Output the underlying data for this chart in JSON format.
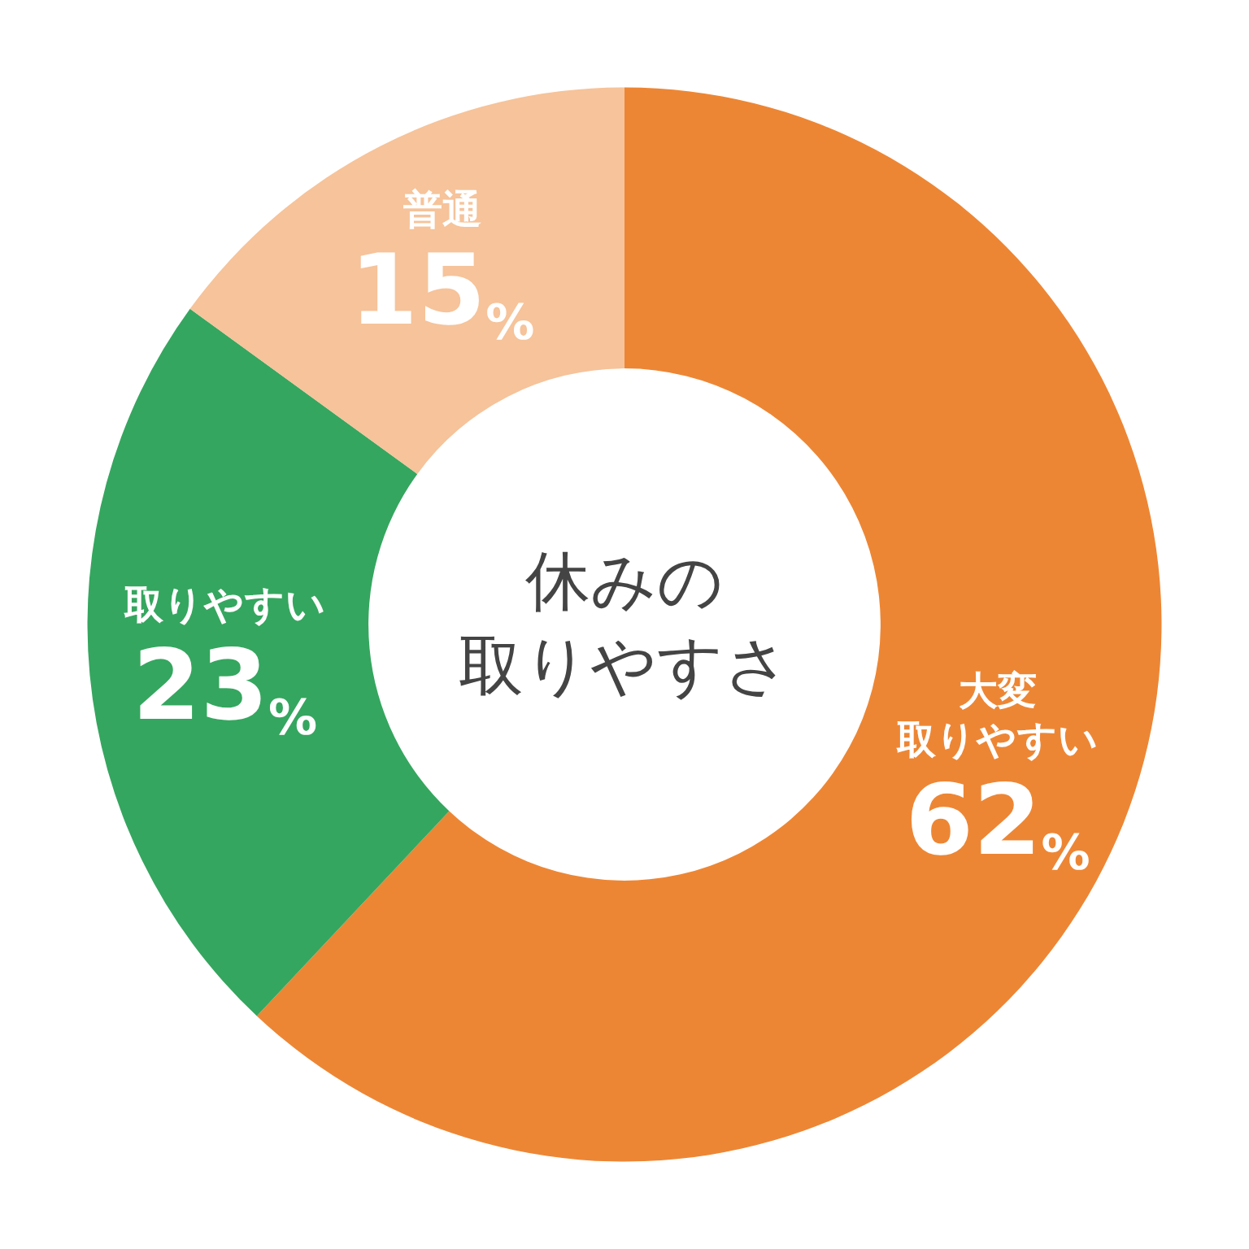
{
  "chart_data": {
    "type": "donut",
    "title": "休みの取りやすさ",
    "categories": [
      "大変取りやすい",
      "取りやすい",
      "普通"
    ],
    "values": [
      62,
      23,
      15
    ],
    "colors": [
      "#ed8634",
      "#35a65f",
      "#f6c39a"
    ],
    "value_labels": [
      "62%",
      "23%",
      "15%"
    ],
    "legend": false
  }
}
